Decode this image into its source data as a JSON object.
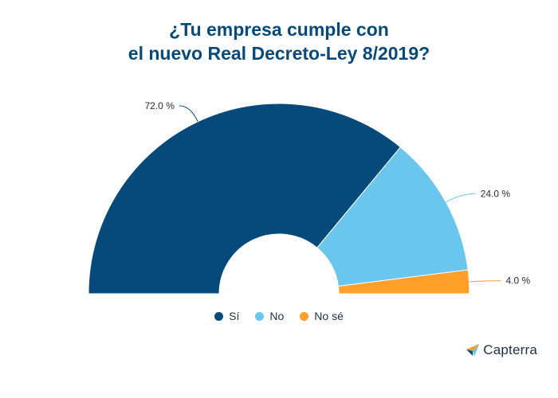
{
  "chart_data": {
    "type": "pie",
    "variant": "semicircle-donut",
    "title_lines": [
      "¿Tu empresa cumple con",
      "el nuevo Real Decreto-Ley 8/2019?"
    ],
    "categories": [
      "Sí",
      "No",
      "No sé"
    ],
    "values": [
      72.0,
      24.0,
      4.0
    ],
    "value_labels": [
      "72.0 %",
      "24.0 %",
      "4.0 %"
    ],
    "colors": [
      "#064a7c",
      "#6bc6ee",
      "#ff9e28"
    ],
    "legend_position": "bottom-center"
  },
  "brand": {
    "name": "Capterra",
    "icon": "capterra-arrow-icon"
  }
}
